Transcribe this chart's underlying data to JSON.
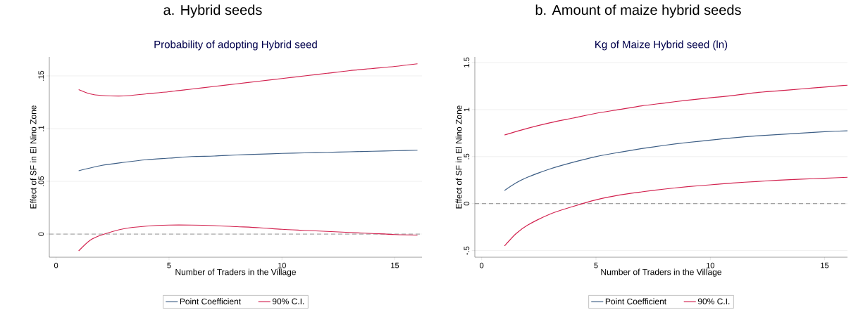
{
  "chart_data": [
    {
      "type": "line",
      "title": "a. Hybrid seeds",
      "subtitle": "Probability of adopting Hybrid seed",
      "xlabel": "Number of Traders in the Village",
      "ylabel": "Effect of SF in El Nino Zone",
      "xlim": [
        -0.3,
        16.2
      ],
      "ylim": [
        -0.022,
        0.168
      ],
      "xticks": [
        0,
        5,
        10,
        15
      ],
      "yticks": [
        {
          "value": 0,
          "label": "0"
        },
        {
          "value": 0.05,
          "label": ".05"
        },
        {
          "value": 0.1,
          "label": ".1"
        },
        {
          "value": 0.15,
          "label": ".15"
        }
      ],
      "grid": "y",
      "legend": "bottom",
      "ref_lines": [
        {
          "axis": "y",
          "value": 0,
          "color": "#707070",
          "line_style": "dashed"
        }
      ],
      "series": [
        {
          "name": "Point Coefficient",
          "color": "#3e5f86",
          "x": [
            1,
            2,
            3,
            4,
            5,
            6,
            7,
            8,
            9,
            10,
            11,
            12,
            13,
            14,
            15,
            16
          ],
          "values": [
            0.06,
            0.065,
            0.068,
            0.0705,
            0.072,
            0.0735,
            0.074,
            0.075,
            0.0757,
            0.0765,
            0.077,
            0.0775,
            0.078,
            0.0785,
            0.079,
            0.0795
          ]
        },
        {
          "name": "90% C.I.",
          "color": "#d2224f",
          "x": [
            1,
            1.5,
            2,
            3,
            4,
            5,
            6,
            7,
            8,
            9,
            10,
            11,
            12,
            13,
            14,
            15,
            16
          ],
          "values": [
            0.137,
            0.133,
            0.1315,
            0.131,
            0.133,
            0.135,
            0.1375,
            0.14,
            0.1425,
            0.145,
            0.1475,
            0.15,
            0.1525,
            0.155,
            0.157,
            0.159,
            0.1615
          ]
        },
        {
          "color": "#d2224f",
          "x": [
            1,
            1.5,
            2,
            3,
            4,
            5,
            6,
            7,
            8,
            9,
            10,
            11,
            12,
            13,
            14,
            15,
            16
          ],
          "values": [
            -0.016,
            -0.006,
            -0.001,
            0.005,
            0.0075,
            0.0085,
            0.0085,
            0.008,
            0.007,
            0.006,
            0.0045,
            0.0035,
            0.0025,
            0.0015,
            0.0005,
            -0.0005,
            -0.001
          ]
        }
      ]
    },
    {
      "type": "line",
      "title": "b. Amount of maize hybrid seeds",
      "subtitle": "Kg of Maize Hybrid seed (ln)",
      "xlabel": "Number of Traders in the Village",
      "ylabel": "Effect of SF in El Nino Zone",
      "xlim": [
        -0.3,
        16.0
      ],
      "ylim": [
        -0.57,
        1.56
      ],
      "xticks": [
        0,
        5,
        10,
        15
      ],
      "yticks": [
        {
          "value": -0.5,
          "label": "-.5"
        },
        0,
        {
          "value": 0.5,
          "label": ".5"
        },
        1,
        1.5
      ],
      "grid": "y",
      "legend": "bottom",
      "ref_lines": [
        {
          "axis": "y",
          "value": 0,
          "color": "#707070",
          "line_style": "dashed"
        }
      ],
      "series": [
        {
          "name": "Point Coefficient",
          "color": "#3e5f86",
          "x": [
            1,
            1.5,
            2,
            3,
            4,
            5,
            6,
            7,
            8,
            9,
            10,
            11,
            12,
            13,
            14,
            15,
            16
          ],
          "values": [
            0.14,
            0.22,
            0.28,
            0.37,
            0.44,
            0.5,
            0.545,
            0.585,
            0.62,
            0.65,
            0.675,
            0.7,
            0.72,
            0.735,
            0.75,
            0.765,
            0.775
          ]
        },
        {
          "name": "90% C.I.",
          "color": "#d2224f",
          "x": [
            1,
            2,
            3,
            4,
            5,
            6,
            7,
            8,
            9,
            10,
            11,
            12,
            13,
            14,
            15,
            16
          ],
          "values": [
            0.73,
            0.8,
            0.86,
            0.91,
            0.96,
            1.0,
            1.04,
            1.07,
            1.1,
            1.125,
            1.15,
            1.18,
            1.2,
            1.22,
            1.24,
            1.26
          ]
        },
        {
          "color": "#d2224f",
          "x": [
            1,
            1.5,
            2,
            3,
            4,
            5,
            6,
            7,
            8,
            9,
            10,
            11,
            12,
            13,
            14,
            15,
            16
          ],
          "values": [
            -0.45,
            -0.32,
            -0.23,
            -0.11,
            -0.03,
            0.04,
            0.09,
            0.125,
            0.155,
            0.18,
            0.2,
            0.22,
            0.235,
            0.25,
            0.26,
            0.27,
            0.28
          ]
        }
      ]
    }
  ]
}
